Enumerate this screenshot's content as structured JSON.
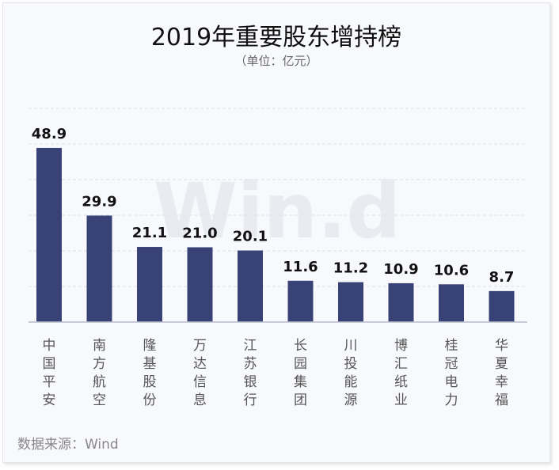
{
  "header": {
    "title": "2019年重要股东增持榜",
    "subtitle": "（单位：亿元）"
  },
  "watermark": "Win.d",
  "footer": {
    "source": "数据来源：Wind"
  },
  "colors": {
    "bar": "#384276",
    "background": "#f8f9fc"
  },
  "chart_data": {
    "type": "bar",
    "title": "2019年重要股东增持榜",
    "subtitle": "（单位：亿元）",
    "categories": [
      "中国平安",
      "南方航空",
      "隆基股份",
      "万达信息",
      "江苏银行",
      "长园集团",
      "川投能源",
      "博汇纸业",
      "桂冠电力",
      "华夏幸福"
    ],
    "values": [
      48.9,
      29.9,
      21.1,
      21.0,
      20.1,
      11.6,
      11.2,
      10.9,
      10.6,
      8.7
    ],
    "value_labels": [
      "48.9",
      "29.9",
      "21.1",
      "21.0",
      "20.1",
      "11.6",
      "11.2",
      "10.9",
      "10.6",
      "8.7"
    ],
    "ylim": [
      0,
      60
    ],
    "grid": true,
    "legend": "none"
  }
}
